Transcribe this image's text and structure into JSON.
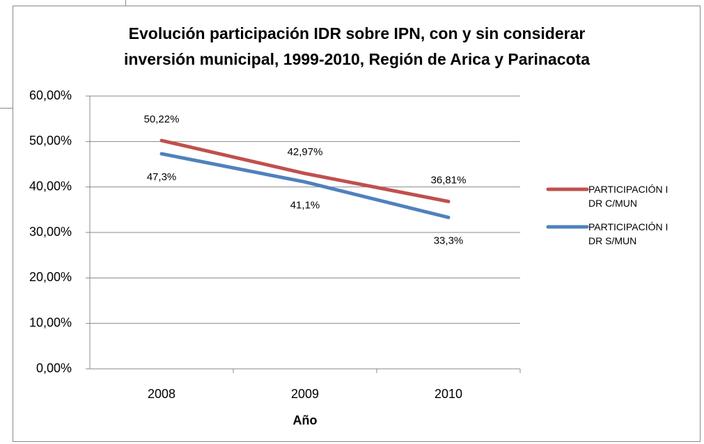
{
  "chart_data": {
    "type": "line",
    "title": "Evolución participación IDR sobre IPN, con y sin considerar inversión municipal, 1999-2010, Región de Arica y Parinacota",
    "x_label": "Año",
    "categories": [
      "2008",
      "2009",
      "2010"
    ],
    "series": [
      {
        "name": "PARTICIPACIÓN IDR C/MUN",
        "color": "#c0504d",
        "values": [
          50.22,
          42.97,
          36.81
        ],
        "value_labels": [
          "50,22%",
          "42,97%",
          "36,81%"
        ]
      },
      {
        "name": "PARTICIPACIÓN IDR S/MUN",
        "color": "#4f81bd",
        "values": [
          47.3,
          41.1,
          33.3
        ],
        "value_labels": [
          "47,3%",
          "41,1%",
          "33,3%"
        ]
      }
    ],
    "ylim": [
      0,
      60
    ],
    "yticks": [
      {
        "value": 0,
        "label": "0,00%"
      },
      {
        "value": 10,
        "label": "10,00%"
      },
      {
        "value": 20,
        "label": "20,00%"
      },
      {
        "value": 30,
        "label": "30,00%"
      },
      {
        "value": 40,
        "label": "40,00%"
      },
      {
        "value": 50,
        "label": "50,00%"
      },
      {
        "value": 60,
        "label": "60,00%"
      }
    ],
    "grid": true,
    "legend": "right"
  }
}
